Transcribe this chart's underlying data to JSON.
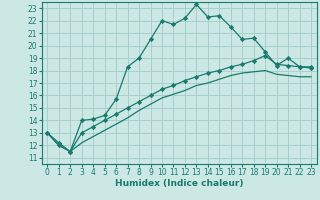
{
  "background_color": "#cce8e4",
  "grid_color": "#a8d0cc",
  "line_color": "#1a7a6e",
  "xlabel": "Humidex (Indice chaleur)",
  "ylabel_ticks": [
    11,
    12,
    13,
    14,
    15,
    16,
    17,
    18,
    19,
    20,
    21,
    22,
    23
  ],
  "xticks": [
    0,
    1,
    2,
    3,
    4,
    5,
    6,
    7,
    8,
    9,
    10,
    11,
    12,
    13,
    14,
    15,
    16,
    17,
    18,
    19,
    20,
    21,
    22,
    23
  ],
  "xlim": [
    -0.5,
    23.5
  ],
  "ylim": [
    10.5,
    23.5
  ],
  "series1_x": [
    0,
    1,
    2,
    3,
    4,
    5,
    6,
    7,
    8,
    9,
    10,
    11,
    12,
    13,
    14,
    15,
    16,
    17,
    18,
    19,
    20,
    21,
    22,
    23
  ],
  "series1_y": [
    13.0,
    12.2,
    11.5,
    14.0,
    14.1,
    14.4,
    15.7,
    18.3,
    19.0,
    20.5,
    22.0,
    21.7,
    22.2,
    23.3,
    22.3,
    22.4,
    21.5,
    20.5,
    20.6,
    19.5,
    18.4,
    19.0,
    18.3,
    18.3
  ],
  "series2_x": [
    0,
    1,
    2,
    3,
    4,
    5,
    6,
    7,
    8,
    9,
    10,
    11,
    12,
    13,
    14,
    15,
    16,
    17,
    18,
    19,
    20,
    21,
    22,
    23
  ],
  "series2_y": [
    13.0,
    12.0,
    11.5,
    13.0,
    13.5,
    14.0,
    14.5,
    15.0,
    15.5,
    16.0,
    16.5,
    16.8,
    17.2,
    17.5,
    17.8,
    18.0,
    18.3,
    18.5,
    18.8,
    19.2,
    18.5,
    18.4,
    18.3,
    18.2
  ],
  "series3_x": [
    0,
    1,
    2,
    3,
    4,
    5,
    6,
    7,
    8,
    9,
    10,
    11,
    12,
    13,
    14,
    15,
    16,
    17,
    18,
    19,
    20,
    21,
    22,
    23
  ],
  "series3_y": [
    13.0,
    12.0,
    11.5,
    12.2,
    12.7,
    13.2,
    13.7,
    14.2,
    14.8,
    15.3,
    15.8,
    16.1,
    16.4,
    16.8,
    17.0,
    17.3,
    17.6,
    17.8,
    17.9,
    18.0,
    17.7,
    17.6,
    17.5,
    17.5
  ]
}
